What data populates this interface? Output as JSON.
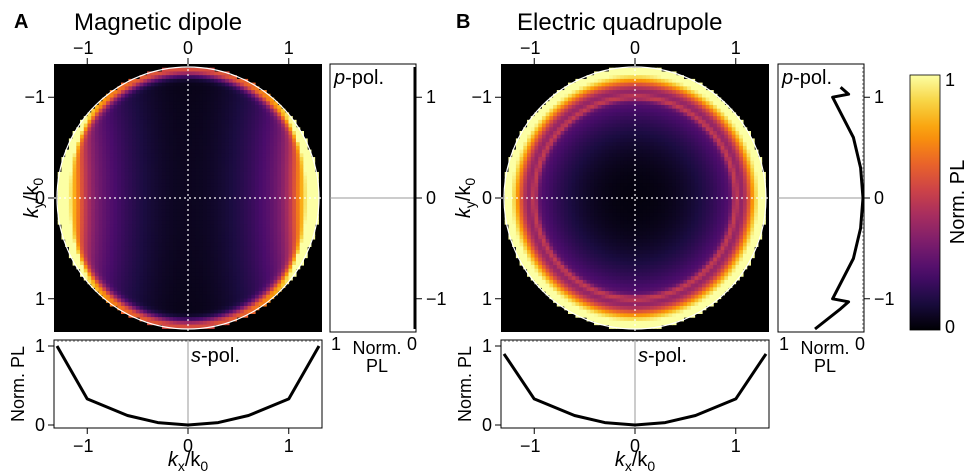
{
  "chart_data": [
    {
      "type": "heatmap",
      "panel_letter": "A",
      "title": "Magnetic dipole",
      "xlabel_main": "k",
      "xlabel_sub": "x",
      "xlabel_denom": "/k",
      "xlabel_denom_sub": "0",
      "ylabel_main": "k",
      "ylabel_sub": "y",
      "ylabel_denom": "/k",
      "ylabel_denom_sub": "0",
      "xlim": [
        -1.33,
        1.33
      ],
      "ylim": [
        -1.33,
        1.33
      ],
      "x_ticks": [
        "−1",
        "0",
        "1"
      ],
      "y_ticks": [
        "−1",
        "0",
        "1"
      ],
      "na": 1.3,
      "pattern": "magnetic-dipole",
      "p_pol": {
        "label_italic": "p",
        "label_rest": "-pol.",
        "x_ticks": [
          "1",
          "0"
        ],
        "xlabel_line1": "Norm.",
        "xlabel_line2": "PL",
        "profile_y": [
          -1.3,
          -1.0,
          0,
          1.0,
          1.3
        ],
        "profile_value": [
          0,
          0,
          0,
          0,
          0
        ]
      },
      "s_pol": {
        "label_italic": "s",
        "label_rest": "-pol.",
        "ylabel": "Norm. PL",
        "y_ticks": [
          "0",
          "1"
        ],
        "profile_x": [
          -1.3,
          -1.0,
          -0.6,
          -0.3,
          0,
          0.3,
          0.6,
          1.0,
          1.3
        ],
        "profile_value": [
          1.0,
          0.33,
          0.12,
          0.03,
          0.0,
          0.03,
          0.12,
          0.33,
          1.0
        ]
      }
    },
    {
      "type": "heatmap",
      "panel_letter": "B",
      "title": "Electric quadrupole",
      "xlabel_main": "k",
      "xlabel_sub": "x",
      "xlabel_denom": "/k",
      "xlabel_denom_sub": "0",
      "ylabel_main": "k",
      "ylabel_sub": "y",
      "ylabel_denom": "/k",
      "ylabel_denom_sub": "0",
      "xlim": [
        -1.33,
        1.33
      ],
      "ylim": [
        -1.33,
        1.33
      ],
      "x_ticks": [
        "−1",
        "0",
        "1"
      ],
      "y_ticks": [
        "−1",
        "0",
        "1"
      ],
      "na": 1.3,
      "pattern": "electric-quadrupole",
      "p_pol": {
        "label_italic": "p",
        "label_rest": "-pol.",
        "x_ticks": [
          "1",
          "0"
        ],
        "xlabel_line1": "Norm.",
        "xlabel_line2": "PL",
        "profile_y": [
          -1.3,
          -1.1,
          -1.03,
          -1.0,
          -0.6,
          -0.3,
          0,
          0.3,
          0.6,
          1.0,
          1.03,
          1.1
        ],
        "profile_value": [
          0.6,
          0.28,
          0.18,
          0.38,
          0.12,
          0.03,
          0.0,
          0.03,
          0.12,
          0.38,
          0.18,
          0.28
        ]
      },
      "s_pol": {
        "label_italic": "s",
        "label_rest": "-pol.",
        "ylabel": "Norm. PL",
        "y_ticks": [
          "0",
          "1"
        ],
        "profile_x": [
          -1.3,
          -1.0,
          -0.6,
          -0.3,
          0,
          0.3,
          0.6,
          1.0,
          1.3
        ],
        "profile_value": [
          0.9,
          0.33,
          0.12,
          0.03,
          0.0,
          0.03,
          0.12,
          0.33,
          0.9
        ]
      }
    }
  ],
  "colorbar": {
    "label": "Norm. PL",
    "ticks": [
      "0",
      "1"
    ],
    "colormap": [
      "#000004",
      "#1b0c41",
      "#4a0c6b",
      "#781c6d",
      "#a52c60",
      "#cf4446",
      "#ed6925",
      "#fb9b06",
      "#f7d13d",
      "#fcffa4"
    ]
  }
}
